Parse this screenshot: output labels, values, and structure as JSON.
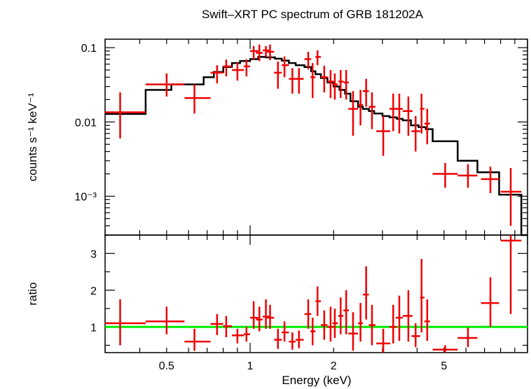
{
  "chart_data": {
    "title": "Swift–XRT PC spectrum of GRB 181202A",
    "xlabel": "Energy (keV)",
    "xscale": "log",
    "xlim": [
      0.3,
      10
    ],
    "x_ticks": [
      {
        "v": 0.5,
        "label": "0.5"
      },
      {
        "v": 1,
        "label": "1"
      },
      {
        "v": 2,
        "label": "2"
      },
      {
        "v": 5,
        "label": "5"
      }
    ],
    "colors": {
      "data": "#ee0000",
      "model": "#000000",
      "unity": "#00ee00"
    },
    "panels": [
      {
        "id": "spectrum",
        "type": "scatter",
        "ylabel": "counts s⁻¹ keV⁻¹",
        "yscale": "log",
        "ylim": [
          0.0003,
          0.13
        ],
        "y_ticks": [
          {
            "v": 0.1,
            "label": "0.1"
          },
          {
            "v": 0.01,
            "label": "0.01"
          },
          {
            "v": 0.001,
            "label": "10⁻³"
          }
        ],
        "data": [
          {
            "x": 0.34,
            "xerr": [
              0.3,
              0.42
            ],
            "y": 0.0135,
            "yerr": [
              0.006,
              0.025
            ]
          },
          {
            "x": 0.5,
            "xerr": [
              0.42,
              0.58
            ],
            "y": 0.032,
            "yerr": [
              0.022,
              0.045
            ]
          },
          {
            "x": 0.63,
            "xerr": [
              0.58,
              0.72
            ],
            "y": 0.021,
            "yerr": [
              0.013,
              0.032
            ]
          },
          {
            "x": 0.76,
            "xerr": [
              0.72,
              0.8
            ],
            "y": 0.046,
            "yerr": [
              0.033,
              0.058
            ]
          },
          {
            "x": 0.82,
            "xerr": [
              0.8,
              0.86
            ],
            "y": 0.056,
            "yerr": [
              0.041,
              0.069
            ]
          },
          {
            "x": 0.9,
            "xerr": [
              0.86,
              0.95
            ],
            "y": 0.05,
            "yerr": [
              0.036,
              0.063
            ]
          },
          {
            "x": 0.97,
            "xerr": [
              0.95,
              1.0
            ],
            "y": 0.056,
            "yerr": [
              0.041,
              0.07
            ]
          },
          {
            "x": 1.03,
            "xerr": [
              1.0,
              1.07
            ],
            "y": 0.09,
            "yerr": [
              0.069,
              0.105
            ]
          },
          {
            "x": 1.08,
            "xerr": [
              1.05,
              1.11
            ],
            "y": 0.085,
            "yerr": [
              0.066,
              0.11
            ]
          },
          {
            "x": 1.14,
            "xerr": [
              1.11,
              1.17
            ],
            "y": 0.092,
            "yerr": [
              0.075,
              0.105
            ]
          },
          {
            "x": 1.18,
            "xerr": [
              1.15,
              1.22
            ],
            "y": 0.088,
            "yerr": [
              0.068,
              0.11
            ]
          },
          {
            "x": 1.26,
            "xerr": [
              1.22,
              1.3
            ],
            "y": 0.046,
            "yerr": [
              0.028,
              0.065
            ]
          },
          {
            "x": 1.33,
            "xerr": [
              1.3,
              1.38
            ],
            "y": 0.058,
            "yerr": [
              0.04,
              0.076
            ]
          },
          {
            "x": 1.42,
            "xerr": [
              1.38,
              1.46
            ],
            "y": 0.038,
            "yerr": [
              0.024,
              0.053
            ]
          },
          {
            "x": 1.5,
            "xerr": [
              1.46,
              1.56
            ],
            "y": 0.038,
            "yerr": [
              0.024,
              0.053
            ]
          },
          {
            "x": 1.62,
            "xerr": [
              1.57,
              1.66
            ],
            "y": 0.07,
            "yerr": [
              0.051,
              0.088
            ]
          },
          {
            "x": 1.68,
            "xerr": [
              1.65,
              1.72
            ],
            "y": 0.04,
            "yerr": [
              0.021,
              0.062
            ]
          },
          {
            "x": 1.75,
            "xerr": [
              1.72,
              1.8
            ],
            "y": 0.075,
            "yerr": [
              0.058,
              0.092
            ]
          },
          {
            "x": 1.85,
            "xerr": [
              1.8,
              1.9
            ],
            "y": 0.04,
            "yerr": [
              0.025,
              0.057
            ]
          },
          {
            "x": 1.95,
            "xerr": [
              1.9,
              2.0
            ],
            "y": 0.035,
            "yerr": [
              0.021,
              0.05
            ]
          },
          {
            "x": 2.02,
            "xerr": [
              1.98,
              2.07
            ],
            "y": 0.032,
            "yerr": [
              0.02,
              0.045
            ]
          },
          {
            "x": 2.12,
            "xerr": [
              2.08,
              2.17
            ],
            "y": 0.035,
            "yerr": [
              0.021,
              0.05
            ]
          },
          {
            "x": 2.22,
            "xerr": [
              2.17,
              2.27
            ],
            "y": 0.034,
            "yerr": [
              0.02,
              0.05
            ]
          },
          {
            "x": 2.35,
            "xerr": [
              2.26,
              2.45
            ],
            "y": 0.015,
            "yerr": [
              0.0065,
              0.026
            ]
          },
          {
            "x": 2.5,
            "xerr": [
              2.45,
              2.55
            ],
            "y": 0.017,
            "yerr": [
              0.009,
              0.027
            ]
          },
          {
            "x": 2.62,
            "xerr": [
              2.55,
              2.68
            ],
            "y": 0.026,
            "yerr": [
              0.016,
              0.038
            ]
          },
          {
            "x": 2.75,
            "xerr": [
              2.68,
              2.83
            ],
            "y": 0.016,
            "yerr": [
              0.008,
              0.025
            ]
          },
          {
            "x": 3.02,
            "xerr": [
              2.85,
              3.2
            ],
            "y": 0.0075,
            "yerr": [
              0.0035,
              0.012
            ]
          },
          {
            "x": 3.28,
            "xerr": [
              3.18,
              3.38
            ],
            "y": 0.015,
            "yerr": [
              0.0075,
              0.024
            ]
          },
          {
            "x": 3.45,
            "xerr": [
              3.35,
              3.55
            ],
            "y": 0.015,
            "yerr": [
              0.007,
              0.024
            ]
          },
          {
            "x": 3.72,
            "xerr": [
              3.55,
              3.85
            ],
            "y": 0.014,
            "yerr": [
              0.0065,
              0.022
            ]
          },
          {
            "x": 3.95,
            "xerr": [
              3.82,
              4.1
            ],
            "y": 0.0075,
            "yerr": [
              0.004,
              0.012
            ]
          },
          {
            "x": 4.15,
            "xerr": [
              4.1,
              4.25
            ],
            "y": 0.015,
            "yerr": [
              0.007,
              0.024
            ]
          },
          {
            "x": 4.35,
            "xerr": [
              4.25,
              4.45
            ],
            "y": 0.0095,
            "yerr": [
              0.005,
              0.015
            ]
          },
          {
            "x": 5.05,
            "xerr": [
              4.55,
              5.6
            ],
            "y": 0.002,
            "yerr": [
              0.0013,
              0.0028
            ]
          },
          {
            "x": 6.1,
            "xerr": [
              5.6,
              6.6
            ],
            "y": 0.0019,
            "yerr": [
              0.0013,
              0.0027
            ]
          },
          {
            "x": 7.35,
            "xerr": [
              6.8,
              7.9
            ],
            "y": 0.0017,
            "yerr": [
              0.0011,
              0.0025
            ]
          },
          {
            "x": 8.7,
            "xerr": [
              8.0,
              9.5
            ],
            "y": 0.00115,
            "yerr": [
              0.0004,
              0.0024
            ]
          }
        ],
        "model": {
          "edges": [
            0.3,
            0.42,
            0.52,
            0.68,
            0.74,
            0.8,
            0.86,
            0.92,
            1.0,
            1.07,
            1.14,
            1.23,
            1.3,
            1.38,
            1.46,
            1.57,
            1.66,
            1.72,
            1.8,
            1.9,
            2.0,
            2.1,
            2.2,
            2.3,
            2.45,
            2.55,
            2.68,
            2.8,
            3.0,
            3.18,
            3.38,
            3.55,
            3.8,
            4.05,
            4.3,
            4.55,
            5.6,
            6.6,
            7.9,
            9.5,
            10
          ],
          "values": [
            0.0128,
            0.027,
            0.032,
            0.04,
            0.047,
            0.055,
            0.062,
            0.066,
            0.07,
            0.075,
            0.074,
            0.071,
            0.067,
            0.062,
            0.058,
            0.055,
            0.048,
            0.044,
            0.039,
            0.034,
            0.03,
            0.027,
            0.024,
            0.019,
            0.016,
            0.015,
            0.014,
            0.013,
            0.012,
            0.0115,
            0.011,
            0.0105,
            0.009,
            0.0085,
            0.008,
            0.0055,
            0.003,
            0.0021,
            0.00105,
            0.00025
          ]
        }
      },
      {
        "id": "ratio",
        "type": "scatter",
        "ylabel": "ratio",
        "yscale": "linear",
        "ylim": [
          0.3,
          3.5
        ],
        "y_ticks": [
          {
            "v": 1,
            "label": "1"
          },
          {
            "v": 2,
            "label": "2"
          },
          {
            "v": 3,
            "label": "3"
          }
        ],
        "reference_line": 1,
        "data": [
          {
            "x": 0.34,
            "xerr": [
              0.3,
              0.42
            ],
            "y": 1.1,
            "yerr": [
              0.5,
              1.75
            ]
          },
          {
            "x": 0.5,
            "xerr": [
              0.42,
              0.58
            ],
            "y": 1.15,
            "yerr": [
              0.8,
              1.55
            ]
          },
          {
            "x": 0.63,
            "xerr": [
              0.58,
              0.72
            ],
            "y": 0.6,
            "yerr": [
              0.35,
              0.95
            ]
          },
          {
            "x": 0.76,
            "xerr": [
              0.72,
              0.8
            ],
            "y": 1.08,
            "yerr": [
              0.78,
              1.35
            ]
          },
          {
            "x": 0.82,
            "xerr": [
              0.8,
              0.86
            ],
            "y": 1.02,
            "yerr": [
              0.72,
              1.3
            ]
          },
          {
            "x": 0.9,
            "xerr": [
              0.86,
              0.95
            ],
            "y": 0.77,
            "yerr": [
              0.55,
              0.95
            ]
          },
          {
            "x": 0.97,
            "xerr": [
              0.95,
              1.0
            ],
            "y": 0.8,
            "yerr": [
              0.6,
              1.0
            ]
          },
          {
            "x": 1.03,
            "xerr": [
              1.0,
              1.07
            ],
            "y": 1.25,
            "yerr": [
              0.95,
              1.7
            ]
          },
          {
            "x": 1.08,
            "xerr": [
              1.05,
              1.11
            ],
            "y": 1.2,
            "yerr": [
              0.88,
              1.55
            ]
          },
          {
            "x": 1.14,
            "xerr": [
              1.11,
              1.17
            ],
            "y": 1.28,
            "yerr": [
              0.95,
              1.75
            ]
          },
          {
            "x": 1.18,
            "xerr": [
              1.15,
              1.22
            ],
            "y": 1.25,
            "yerr": [
              0.95,
              1.6
            ]
          },
          {
            "x": 1.26,
            "xerr": [
              1.22,
              1.3
            ],
            "y": 0.65,
            "yerr": [
              0.4,
              0.95
            ]
          },
          {
            "x": 1.33,
            "xerr": [
              1.3,
              1.38
            ],
            "y": 0.85,
            "yerr": [
              0.6,
              1.15
            ]
          },
          {
            "x": 1.42,
            "xerr": [
              1.38,
              1.46
            ],
            "y": 0.6,
            "yerr": [
              0.38,
              0.85
            ]
          },
          {
            "x": 1.5,
            "xerr": [
              1.46,
              1.56
            ],
            "y": 0.65,
            "yerr": [
              0.42,
              0.9
            ]
          },
          {
            "x": 1.62,
            "xerr": [
              1.57,
              1.66
            ],
            "y": 1.35,
            "yerr": [
              0.95,
              1.75
            ]
          },
          {
            "x": 1.68,
            "xerr": [
              1.65,
              1.72
            ],
            "y": 0.88,
            "yerr": [
              0.5,
              1.25
            ]
          },
          {
            "x": 1.75,
            "xerr": [
              1.72,
              1.8
            ],
            "y": 1.7,
            "yerr": [
              1.3,
              2.1
            ]
          },
          {
            "x": 1.85,
            "xerr": [
              1.8,
              1.9
            ],
            "y": 1.05,
            "yerr": [
              0.65,
              1.45
            ]
          },
          {
            "x": 1.95,
            "xerr": [
              1.9,
              2.0
            ],
            "y": 1.0,
            "yerr": [
              0.6,
              1.55
            ]
          },
          {
            "x": 2.02,
            "xerr": [
              1.98,
              2.07
            ],
            "y": 1.1,
            "yerr": [
              0.7,
              1.5
            ]
          },
          {
            "x": 2.12,
            "xerr": [
              2.08,
              2.17
            ],
            "y": 1.3,
            "yerr": [
              0.8,
              1.8
            ]
          },
          {
            "x": 2.22,
            "xerr": [
              2.17,
              2.27
            ],
            "y": 1.45,
            "yerr": [
              0.8,
              2.0
            ]
          },
          {
            "x": 2.35,
            "xerr": [
              2.26,
              2.45
            ],
            "y": 0.82,
            "yerr": [
              0.35,
              1.4
            ]
          },
          {
            "x": 2.5,
            "xerr": [
              2.45,
              2.55
            ],
            "y": 1.1,
            "yerr": [
              0.6,
              1.65
            ]
          },
          {
            "x": 2.62,
            "xerr": [
              2.55,
              2.68
            ],
            "y": 1.88,
            "yerr": [
              1.2,
              2.65
            ]
          },
          {
            "x": 2.75,
            "xerr": [
              2.68,
              2.83
            ],
            "y": 1.05,
            "yerr": [
              0.5,
              1.6
            ]
          },
          {
            "x": 3.02,
            "xerr": [
              2.85,
              3.2
            ],
            "y": 0.55,
            "yerr": [
              0.3,
              0.95
            ]
          },
          {
            "x": 3.28,
            "xerr": [
              3.18,
              3.38
            ],
            "y": 1.0,
            "yerr": [
              0.55,
              1.6
            ]
          },
          {
            "x": 3.45,
            "xerr": [
              3.35,
              3.55
            ],
            "y": 1.25,
            "yerr": [
              0.62,
              1.85
            ]
          },
          {
            "x": 3.72,
            "xerr": [
              3.55,
              3.85
            ],
            "y": 1.3,
            "yerr": [
              0.6,
              2.0
            ]
          },
          {
            "x": 3.95,
            "xerr": [
              3.82,
              4.1
            ],
            "y": 0.75,
            "yerr": [
              0.45,
              1.1
            ]
          },
          {
            "x": 4.15,
            "xerr": [
              4.1,
              4.25
            ],
            "y": 1.8,
            "yerr": [
              0.85,
              2.85
            ]
          },
          {
            "x": 4.35,
            "xerr": [
              4.25,
              4.45
            ],
            "y": 1.15,
            "yerr": [
              0.62,
              1.75
            ]
          },
          {
            "x": 5.05,
            "xerr": [
              4.55,
              5.6
            ],
            "y": 0.38,
            "yerr": [
              0.3,
              0.5
            ]
          },
          {
            "x": 6.1,
            "xerr": [
              5.6,
              6.6
            ],
            "y": 0.7,
            "yerr": [
              0.45,
              0.98
            ]
          },
          {
            "x": 7.35,
            "xerr": [
              6.8,
              7.9
            ],
            "y": 1.65,
            "yerr": [
              1.0,
              2.35
            ]
          },
          {
            "x": 8.7,
            "xerr": [
              8.0,
              9.5
            ],
            "y": 3.35,
            "yerr": [
              1.35,
              3.5
            ]
          }
        ]
      }
    ]
  }
}
